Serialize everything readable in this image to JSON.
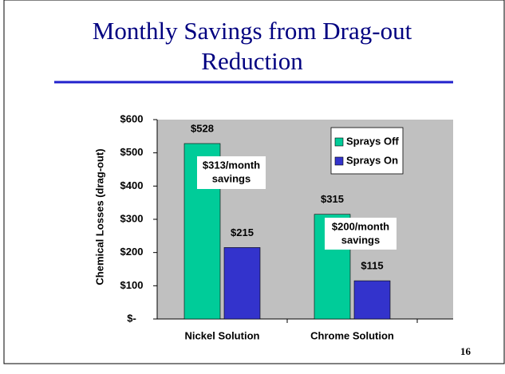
{
  "chart_data": {
    "type": "bar",
    "title_lines": [
      "Monthly Savings from Drag-out",
      "Reduction"
    ],
    "y_label": "Chemical Losses (drag-out)",
    "categories": [
      "Nickel Solution",
      "Chrome Solution"
    ],
    "series": [
      {
        "name": "Sprays Off",
        "color": "#00cc99",
        "values": [
          528,
          315
        ],
        "value_labels": [
          "$528",
          "$315"
        ]
      },
      {
        "name": "Sprays On",
        "color": "#3333cc",
        "values": [
          215,
          115
        ],
        "value_labels": [
          "$215",
          "$115"
        ]
      }
    ],
    "ylim": [
      0,
      600
    ],
    "yticks": [
      {
        "value": 0,
        "label": "$-"
      },
      {
        "value": 100,
        "label": "$100"
      },
      {
        "value": 200,
        "label": "$200"
      },
      {
        "value": 300,
        "label": "$300"
      },
      {
        "value": 400,
        "label": "$400"
      },
      {
        "value": 500,
        "label": "$500"
      },
      {
        "value": 600,
        "label": "$600"
      }
    ],
    "annotations": [
      {
        "lines": [
          "$313/month",
          "savings"
        ]
      },
      {
        "lines": [
          "$200/month",
          "savings"
        ]
      }
    ],
    "legend": "upper right",
    "page_number": "16"
  }
}
